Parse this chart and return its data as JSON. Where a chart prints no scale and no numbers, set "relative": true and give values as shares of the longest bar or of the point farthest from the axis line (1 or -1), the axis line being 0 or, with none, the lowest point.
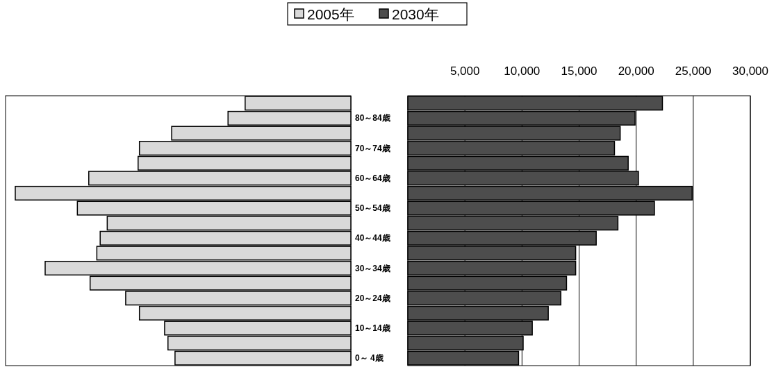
{
  "chart_data": [
    {
      "type": "bar",
      "orientation": "horizontal",
      "relative": true,
      "categories": [
        null,
        "80～84歳",
        null,
        "70～74歳",
        null,
        "60～64歳",
        null,
        "50～54歳",
        null,
        "40～44歳",
        null,
        "30～34歳",
        null,
        "20～24歳",
        null,
        "10～14歳",
        null,
        "0～ 4歳"
      ],
      "series": [
        {
          "name": "2005年",
          "color": "#d9d9d9",
          "values": [
            0.315,
            0.366,
            0.534,
            0.63,
            0.634,
            0.781,
            1,
            0.815,
            0.726,
            0.747,
            0.757,
            0.911,
            0.777,
            0.671,
            0.63,
            0.555,
            0.545,
            0.524
          ]
        }
      ],
      "legend": "top"
    },
    {
      "type": "bar",
      "orientation": "horizontal",
      "categories": [
        null,
        null,
        null,
        null,
        null,
        null,
        null,
        null,
        null,
        null,
        null,
        null,
        null,
        null,
        null,
        null,
        null,
        null
      ],
      "series": [
        {
          "name": "2030年",
          "color": "#4d4d4d",
          "values": [
            22300,
            19900,
            18600,
            18100,
            19300,
            20200,
            24900,
            21600,
            18400,
            16500,
            14700,
            14700,
            13900,
            13400,
            12300,
            10900,
            10100,
            9700
          ]
        }
      ],
      "xlim": [
        0,
        30000
      ],
      "xticks": [
        {
          "value": 5000,
          "label": "5,000"
        },
        {
          "value": 10000,
          "label": "10,000"
        },
        {
          "value": 15000,
          "label": "15,000"
        },
        {
          "value": 20000,
          "label": "20,000"
        },
        {
          "value": 25000,
          "label": "25,000"
        },
        {
          "value": 30000,
          "label": "30,000"
        }
      ],
      "grid": "x",
      "legend": "top"
    }
  ]
}
